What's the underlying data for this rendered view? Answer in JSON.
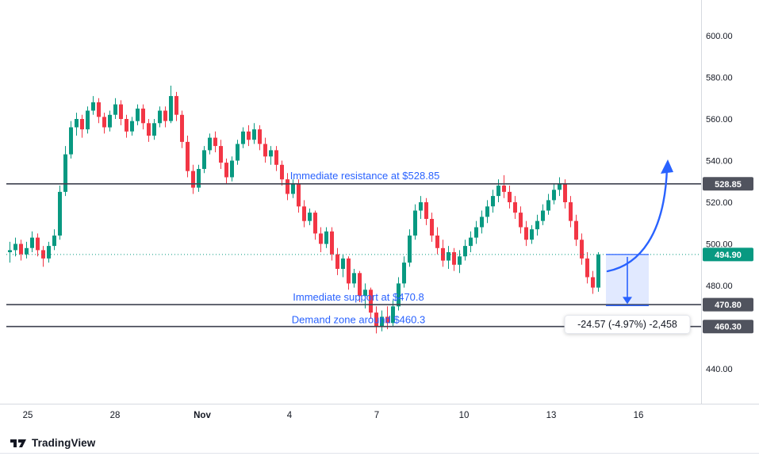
{
  "footer": {
    "brand": "TradingView"
  },
  "colors": {
    "up": "#089981",
    "down": "#f23645",
    "blue": "#2962ff",
    "level_line": "#3e4250",
    "badge": "#50535e",
    "text": "#131722",
    "axis_line": "#d6d9e0",
    "measure_fill": "rgba(41,98,255,0.14)"
  },
  "chart_data": {
    "type": "candlestick",
    "x_axis_labels": [
      "25",
      "28",
      "Nov",
      "4",
      "7",
      "10",
      "13",
      "16"
    ],
    "y_axis_labels": [
      "600.00",
      "580.00",
      "560.00",
      "540.00",
      "520.00",
      "500.00",
      "480.00",
      "460.00",
      "440.00"
    ],
    "y_range": [
      422.9,
      617.1
    ],
    "current_price": {
      "price": 494.9,
      "axis_label": "494.90"
    },
    "levels": [
      {
        "price": 528.85,
        "axis_label": "528.85",
        "annotation": "Immediate resistance at $528.85"
      },
      {
        "price": 470.8,
        "axis_label": "470.80",
        "annotation": "Immediate support at $470.8"
      },
      {
        "price": 460.3,
        "axis_label": "460.30",
        "annotation": "Demand zone around $460.3"
      }
    ],
    "measure": {
      "from_price": 494.9,
      "to_price": 470.33,
      "label": "-24.57 (-4.97%) -2,458"
    },
    "candles": [
      [
        496,
        501,
        491,
        497
      ],
      [
        497,
        503,
        494,
        500
      ],
      [
        500,
        502,
        492,
        495
      ],
      [
        495,
        501,
        493,
        498
      ],
      [
        498,
        506,
        496,
        503
      ],
      [
        503,
        505,
        494,
        497
      ],
      [
        497,
        499,
        489,
        493
      ],
      [
        493,
        501,
        491,
        499
      ],
      [
        499,
        507,
        497,
        504
      ],
      [
        504,
        528,
        502,
        525
      ],
      [
        525,
        547,
        523,
        543
      ],
      [
        543,
        559,
        541,
        556
      ],
      [
        556,
        563,
        552,
        560
      ],
      [
        560,
        562,
        551,
        555
      ],
      [
        555,
        566,
        553,
        564
      ],
      [
        564,
        571,
        562,
        568
      ],
      [
        568,
        570,
        558,
        561
      ],
      [
        561,
        563,
        553,
        556
      ],
      [
        556,
        564,
        554,
        562
      ],
      [
        562,
        570,
        560,
        567
      ],
      [
        567,
        569,
        557,
        560
      ],
      [
        560,
        562,
        551,
        554
      ],
      [
        554,
        561,
        552,
        559
      ],
      [
        559,
        567,
        557,
        565
      ],
      [
        565,
        567,
        555,
        558
      ],
      [
        558,
        560,
        549,
        552
      ],
      [
        552,
        560,
        550,
        558
      ],
      [
        558,
        566,
        556,
        564
      ],
      [
        564,
        566,
        556,
        559
      ],
      [
        559,
        576,
        558,
        571
      ],
      [
        571,
        573,
        559,
        562
      ],
      [
        562,
        564,
        546,
        549
      ],
      [
        549,
        552,
        532,
        535
      ],
      [
        535,
        538,
        524,
        527
      ],
      [
        527,
        538,
        525,
        536
      ],
      [
        536,
        547,
        534,
        545
      ],
      [
        545,
        553,
        543,
        551
      ],
      [
        551,
        554,
        544,
        547
      ],
      [
        547,
        550,
        536,
        539
      ],
      [
        539,
        541,
        529,
        532
      ],
      [
        532,
        542,
        530,
        540
      ],
      [
        540,
        550,
        538,
        548
      ],
      [
        548,
        556,
        546,
        554
      ],
      [
        554,
        557,
        547,
        550
      ],
      [
        550,
        558,
        548,
        555
      ],
      [
        555,
        557,
        545,
        548
      ],
      [
        548,
        551,
        539,
        542
      ],
      [
        542,
        547,
        538,
        545
      ],
      [
        545,
        547,
        535,
        538
      ],
      [
        538,
        540,
        528,
        531
      ],
      [
        531,
        534,
        521,
        524
      ],
      [
        524,
        531,
        522,
        529
      ],
      [
        529,
        531,
        515,
        518
      ],
      [
        518,
        521,
        508,
        511
      ],
      [
        511,
        517,
        509,
        515
      ],
      [
        515,
        516,
        502,
        505
      ],
      [
        505,
        508,
        496,
        500
      ],
      [
        500,
        508,
        498,
        506
      ],
      [
        506,
        508,
        492,
        495
      ],
      [
        495,
        498,
        485,
        488
      ],
      [
        488,
        495,
        484,
        493
      ],
      [
        493,
        494,
        478,
        481
      ],
      [
        481,
        488,
        479,
        486
      ],
      [
        486,
        487,
        472,
        475
      ],
      [
        475,
        481,
        469,
        478
      ],
      [
        478,
        479,
        464,
        467
      ],
      [
        467,
        470,
        457,
        460
      ],
      [
        460,
        468,
        458,
        465
      ],
      [
        465,
        470,
        459,
        462
      ],
      [
        462,
        473,
        460,
        470
      ],
      [
        470,
        484,
        468,
        481
      ],
      [
        481,
        494,
        479,
        491
      ],
      [
        491,
        507,
        489,
        504
      ],
      [
        504,
        519,
        502,
        516
      ],
      [
        516,
        523,
        512,
        520
      ],
      [
        520,
        522,
        509,
        512
      ],
      [
        512,
        515,
        501,
        504
      ],
      [
        504,
        508,
        495,
        498
      ],
      [
        498,
        502,
        489,
        492
      ],
      [
        492,
        499,
        488,
        496
      ],
      [
        496,
        498,
        487,
        490
      ],
      [
        490,
        497,
        486,
        494
      ],
      [
        494,
        502,
        492,
        499
      ],
      [
        499,
        506,
        496,
        503
      ],
      [
        503,
        511,
        500,
        508
      ],
      [
        508,
        516,
        505,
        513
      ],
      [
        513,
        521,
        510,
        518
      ],
      [
        518,
        526,
        515,
        523
      ],
      [
        523,
        531,
        520,
        528
      ],
      [
        528,
        533,
        522,
        525
      ],
      [
        525,
        528,
        517,
        520
      ],
      [
        520,
        523,
        512,
        515
      ],
      [
        515,
        518,
        505,
        508
      ],
      [
        508,
        511,
        499,
        502
      ],
      [
        502,
        509,
        500,
        507
      ],
      [
        507,
        514,
        504,
        511
      ],
      [
        511,
        519,
        509,
        516
      ],
      [
        516,
        524,
        514,
        521
      ],
      [
        521,
        529,
        519,
        526
      ],
      [
        526,
        532,
        523,
        529
      ],
      [
        529,
        531,
        517,
        520
      ],
      [
        520,
        523,
        508,
        511
      ],
      [
        511,
        514,
        499,
        502
      ],
      [
        502,
        505,
        490,
        493
      ],
      [
        493,
        496,
        481,
        484
      ],
      [
        484,
        487,
        476,
        479
      ],
      [
        479,
        496,
        477,
        494.9
      ]
    ]
  }
}
